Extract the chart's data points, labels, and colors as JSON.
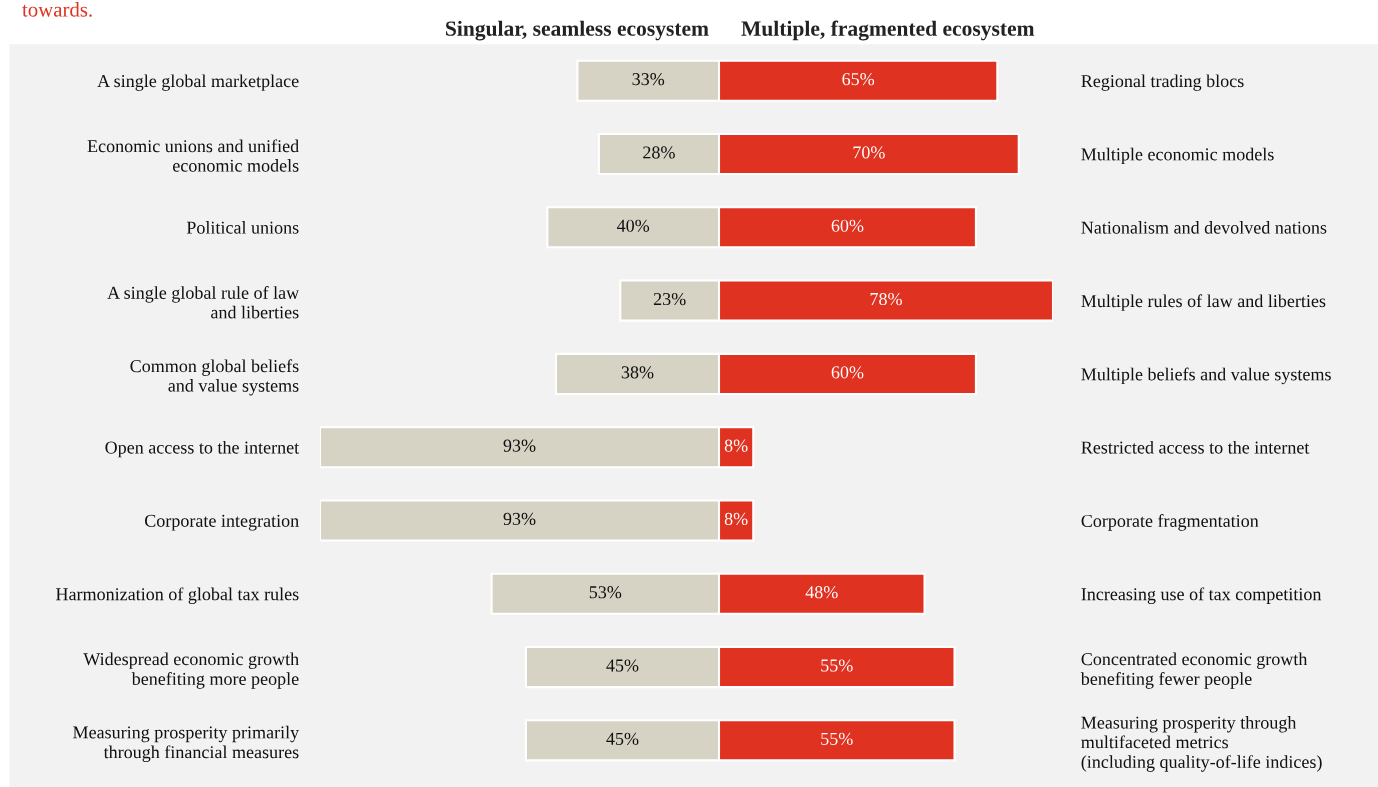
{
  "chart_data": [
    {
      "type": "bar",
      "orientation": "horizontal",
      "annotations": [
        "towards."
      ],
      "categories": [
        "A single global marketplace",
        "Economic unions and unified\neconomic models",
        "Political unions",
        "A single global rule of law\nand liberties",
        "Common global beliefs\nand value systems",
        "Open access to the internet",
        "Corporate integration",
        "Harmonization of global tax rules",
        "Widespread economic growth\nbenefiting more people",
        "Measuring prosperity primarily\nthrough financial measures"
      ],
      "series": [
        {
          "name": "Singular, seamless ecosystem",
          "color": "#d6d2c4",
          "values": [
            33,
            28,
            40,
            23,
            38,
            93,
            93,
            53,
            45,
            45
          ],
          "value_labels": [
            "33%",
            "28%",
            "40%",
            "23%",
            "38%",
            "93%",
            "93%",
            "53%",
            "45%",
            "45%"
          ]
        }
      ],
      "xlim": [
        93,
        0
      ],
      "tick_labels": "y"
    },
    {
      "type": "bar",
      "orientation": "horizontal",
      "categories": [
        "Regional trading blocs",
        "Multiple economic models",
        "Nationalism and devolved nations",
        "Multiple rules of law and liberties",
        "Multiple beliefs and value systems",
        "Restricted access to the internet",
        "Corporate fragmentation",
        "Increasing use of tax competition",
        "Concentrated economic growth\nbenefiting fewer people",
        "Measuring prosperity through\nmultifaceted metrics\n(including quality-of-life indices)"
      ],
      "series": [
        {
          "name": "Multiple, fragmented ecosystem",
          "color": "#e03221",
          "values": [
            65,
            70,
            60,
            78,
            60,
            8,
            8,
            48,
            55,
            55
          ],
          "value_labels": [
            "65%",
            "70%",
            "60%",
            "78%",
            "60%",
            "8%",
            "8%",
            "48%",
            "55%",
            "55%"
          ]
        }
      ],
      "xlim": [
        0,
        78
      ],
      "tick_labels": "y"
    }
  ]
}
